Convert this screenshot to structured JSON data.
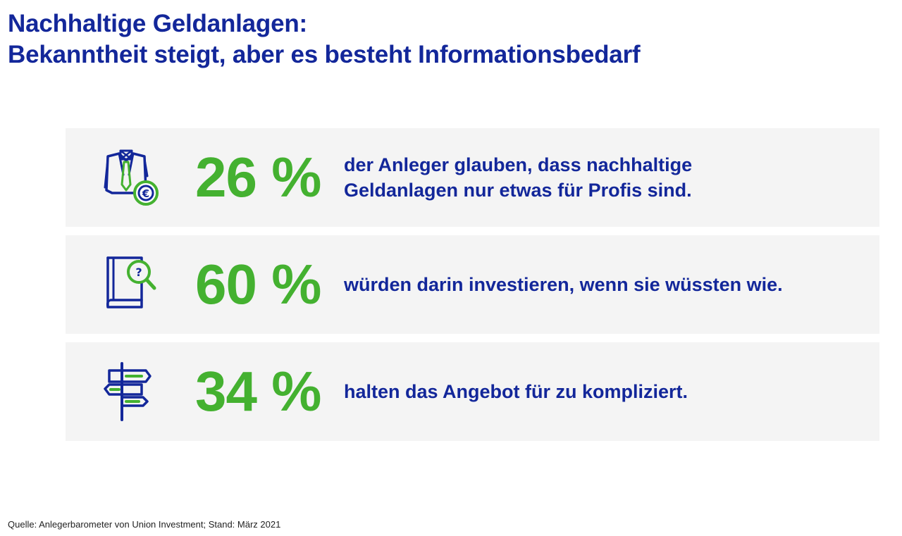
{
  "title": {
    "line1": "Nachhaltige Geldanlagen:",
    "line2": "Bekanntheit steigt, aber es besteht Informationsbedarf"
  },
  "colors": {
    "blue": "#13279a",
    "green": "#44b130",
    "card_bg": "#f4f4f4"
  },
  "stats": [
    {
      "icon": "businessman-euro-icon",
      "percent": "26 %",
      "text_line1": "der Anleger glauben, dass nachhaltige",
      "text_line2": "Geldanlagen nur etwas für Profis sind."
    },
    {
      "icon": "book-question-magnifier-icon",
      "percent": "60 %",
      "text_line1": "würden darin investieren, wenn sie wüssten wie."
    },
    {
      "icon": "signpost-icon",
      "percent": "34 %",
      "text_line1": "halten das Angebot für zu kompliziert."
    }
  ],
  "source": "Quelle: Anlegerbarometer von Union Investment; Stand: März 2021"
}
